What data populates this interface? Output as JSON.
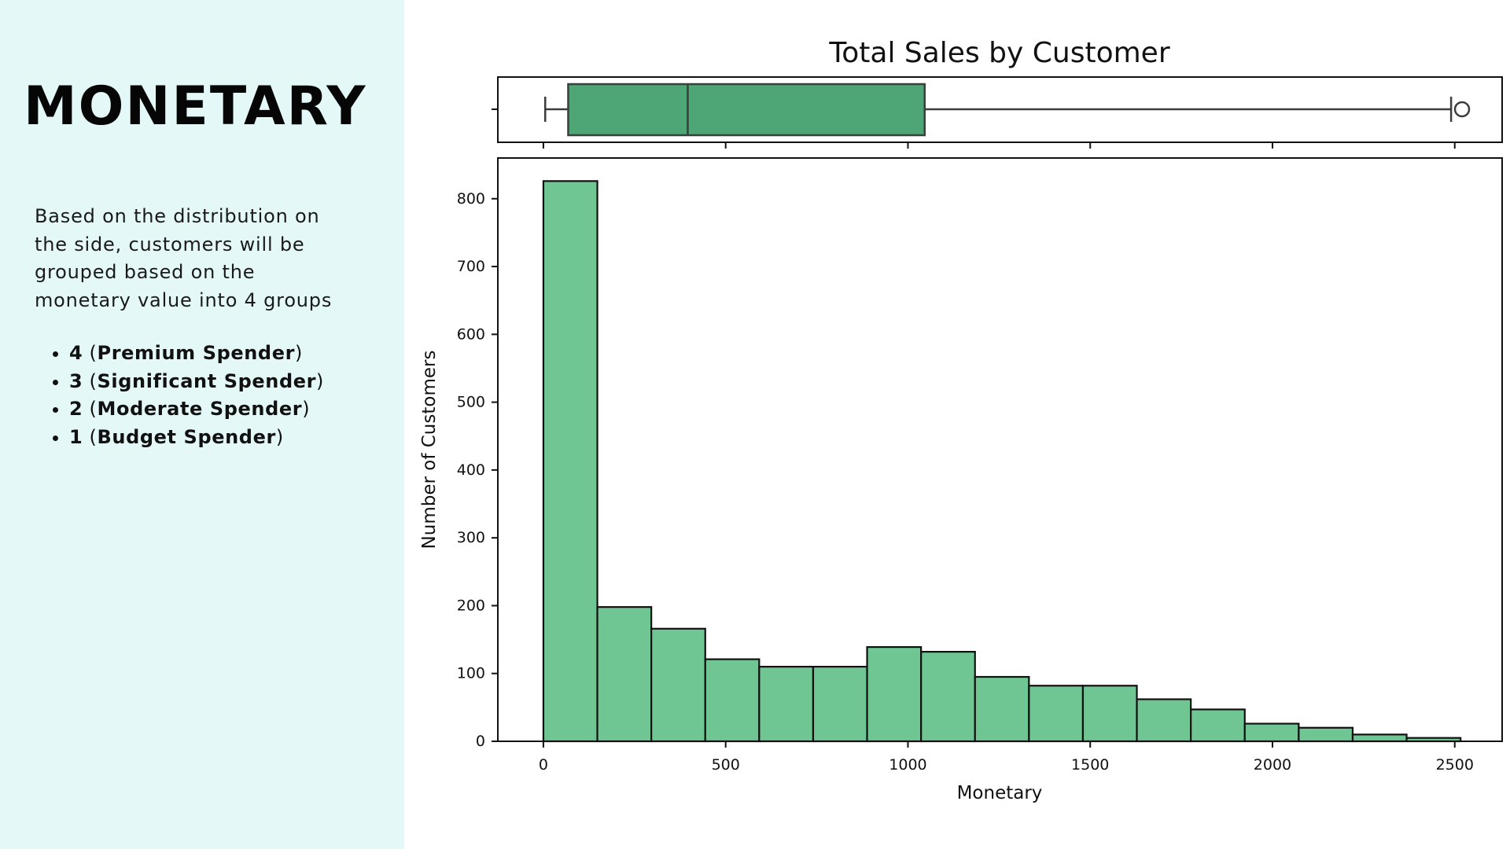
{
  "sidebar": {
    "heading": "MONETARY",
    "description": "Based on the distribution on the side, customers will be grouped based on the monetary value into 4 groups",
    "groups": [
      {
        "num": "4",
        "label": "Premium Spender"
      },
      {
        "num": "3",
        "label": "Significant Spender"
      },
      {
        "num": "2",
        "label": "Moderate Spender"
      },
      {
        "num": "1",
        "label": "Budget Spender"
      }
    ]
  },
  "colors": {
    "sidebar_bg": "#e4f8f7",
    "bar_fill": "#6fc692",
    "box_fill": "#4ea575",
    "box_edge": "#3d3d3d"
  },
  "chart_data": {
    "type": "bar",
    "title": "Total Sales by Customer",
    "xlabel": "Monetary",
    "ylabel": "Number of Customers",
    "xlim": [
      -125,
      2630
    ],
    "ylim": [
      0,
      860
    ],
    "xticks": [
      0,
      500,
      1000,
      1500,
      2000,
      2500
    ],
    "yticks": [
      0,
      100,
      200,
      300,
      400,
      500,
      600,
      700,
      800
    ],
    "grid": false,
    "bin_edges": [
      0,
      148,
      296,
      444,
      592,
      740,
      888,
      1036,
      1184,
      1332,
      1480,
      1628,
      1776,
      1924,
      2072,
      2220,
      2368,
      2516
    ],
    "counts": [
      826,
      198,
      166,
      121,
      110,
      110,
      139,
      132,
      95,
      82,
      82,
      62,
      47,
      26,
      20,
      10,
      5
    ],
    "boxplot": {
      "whisker_low": 5,
      "q1": 68,
      "median": 396,
      "q3": 1046,
      "whisker_high": 2490,
      "outliers": [
        2520
      ]
    }
  }
}
